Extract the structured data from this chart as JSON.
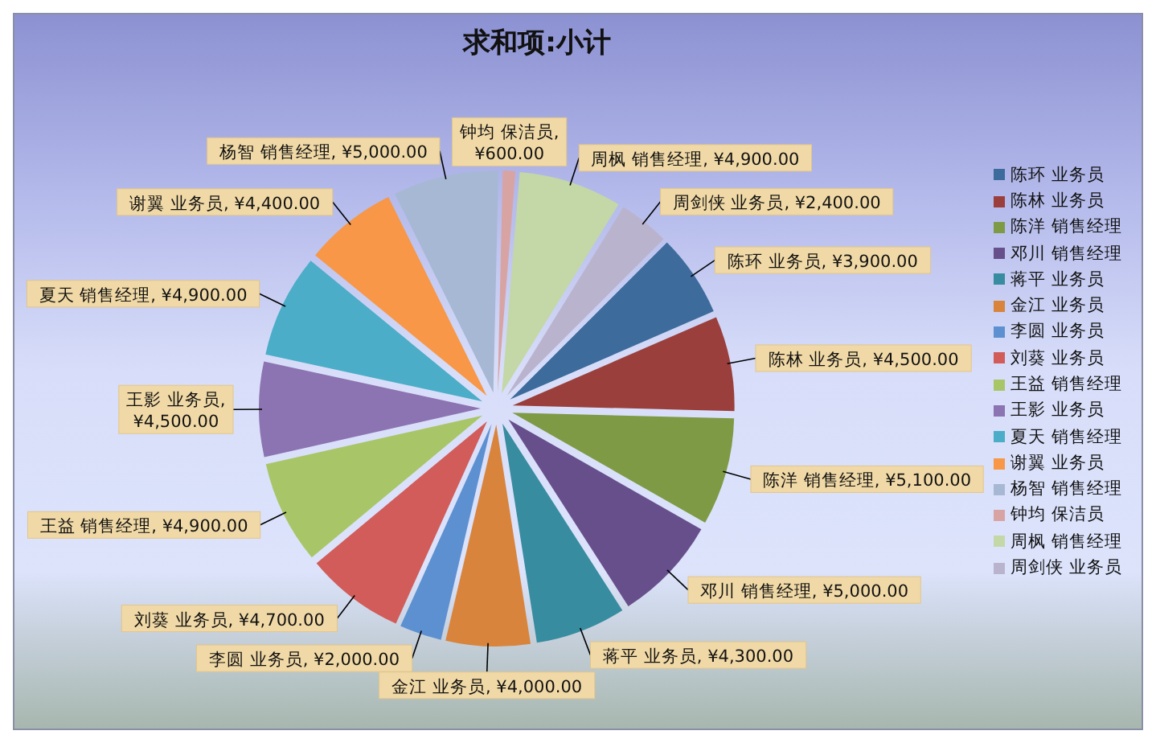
{
  "chart_data": {
    "type": "pie",
    "title": "求和项:小计",
    "categories": [
      "陈环 业务员",
      "陈林 业务员",
      "陈洋 销售经理",
      "邓川 销售经理",
      "蒋平 业务员",
      "金江 业务员",
      "李圆 业务员",
      "刘葵 业务员",
      "王益 销售经理",
      "王影 业务员",
      "夏天 销售经理",
      "谢翼 业务员",
      "杨智 销售经理",
      "钟均 保洁员",
      "周枫 销售经理",
      "周剑侠 业务员"
    ],
    "values": [
      3900,
      4500,
      5100,
      5000,
      4300,
      4000,
      2000,
      4700,
      4900,
      4500,
      4900,
      4400,
      5000,
      600,
      4900,
      2400
    ],
    "value_labels": [
      "陈环 业务员, ¥3,900.00",
      "陈林 业务员, ¥4,500.00",
      "陈洋 销售经理, ¥5,100.00",
      "邓川 销售经理, ¥5,000.00",
      "蒋平 业务员, ¥4,300.00",
      "金江 业务员, ¥4,000.00",
      "李圆 业务员, ¥2,000.00",
      "刘葵 业务员, ¥4,700.00",
      "王益 销售经理, ¥4,900.00",
      "王影 业务员, ¥4,500.00",
      "夏天 销售经理, ¥4,900.00",
      "谢翼 业务员, ¥4,400.00",
      "杨智 销售经理, ¥5,000.00",
      "钟均 保洁员, ¥600.00",
      "周枫 销售经理, ¥4,900.00",
      "周剑侠 业务员, ¥2,400.00"
    ],
    "colors": [
      "#3d6b9c",
      "#9b3f3c",
      "#7e9a45",
      "#674f8b",
      "#388c9f",
      "#d9843c",
      "#5d90d1",
      "#d15c59",
      "#a8c667",
      "#8c73b1",
      "#4badc7",
      "#f79747",
      "#a7b8d4",
      "#d8a4a3",
      "#c4d7a7",
      "#bab3ce"
    ],
    "legend": "right"
  }
}
